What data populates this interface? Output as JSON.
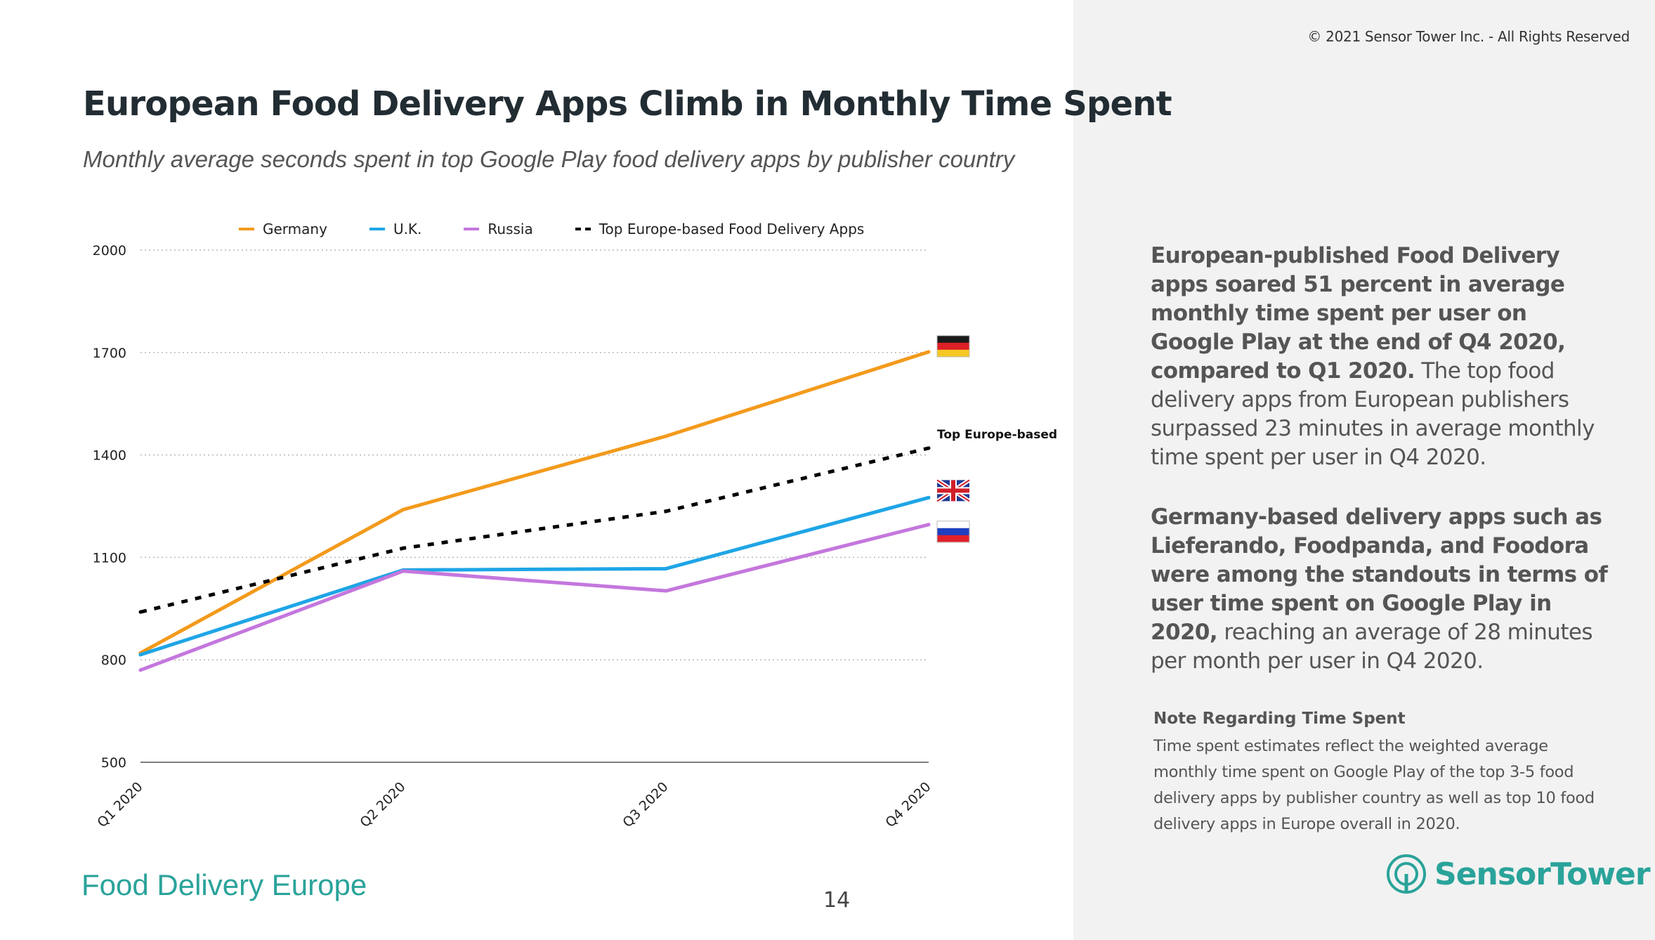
{
  "header": {
    "copyright": "© 2021 Sensor Tower Inc. - All Rights Reserved",
    "title": "European Food Delivery Apps Climb in Monthly Time Spent",
    "subtitle": "Monthly average seconds spent in top Google Play food delivery apps by publisher country"
  },
  "chart_data": {
    "type": "line",
    "categories": [
      "Q1 2020",
      "Q2 2020",
      "Q3 2020",
      "Q4 2020"
    ],
    "ylim": [
      500,
      2000
    ],
    "yticks": [
      500,
      800,
      1100,
      1400,
      1700,
      2000
    ],
    "grid": "horizontal dotted",
    "legend_position": "top",
    "series": [
      {
        "name": "Germany",
        "color": "#f39a1c",
        "dashed": false,
        "values": [
          820,
          1240,
          1455,
          1702
        ]
      },
      {
        "name": "U.K.",
        "color": "#1ea5e6",
        "dashed": false,
        "values": [
          815,
          1063,
          1067,
          1275
        ]
      },
      {
        "name": "Russia",
        "color": "#c477dd",
        "dashed": false,
        "values": [
          770,
          1060,
          1002,
          1196
        ]
      },
      {
        "name": "Top Europe-based Food Delivery Apps",
        "color": "#000000",
        "dashed": true,
        "values": [
          940,
          1127,
          1235,
          1420
        ]
      }
    ],
    "annotations": [
      {
        "text": "Top Europe-based",
        "series": "Top Europe-based Food Delivery Apps"
      }
    ],
    "flag_icons": [
      "germany-flag-icon",
      "uk-flag-icon",
      "russia-flag-icon"
    ]
  },
  "panel": {
    "p1_bold": "European-published Food Delivery apps soared 51 percent in average monthly time spent per user on Google Play at the end of Q4 2020, compared to Q1 2020.",
    "p1_rest": " The top food delivery apps from European publishers surpassed 23 minutes in average monthly time spent per user in Q4 2020.",
    "p2_bold": "Germany-based delivery apps such as Lieferando, Foodpanda, and Foodora were among the standouts in terms of user time spent on Google Play in 2020,",
    "p2_rest": " reaching an average of 28 minutes per month per user in Q4 2020.",
    "note_title": "Note Regarding Time Spent",
    "note_text": "Time spent estimates reflect the weighted average monthly time spent on Google Play of the top 3-5 food delivery apps by publisher country as well as top 10 food delivery apps in Europe overall in 2020.",
    "logo_text": "SensorTower"
  },
  "footer": {
    "section": "Food Delivery Europe",
    "page_number": "14"
  },
  "colors": {
    "accent": "#2aa39a",
    "panel_bg": "#f2f2f2"
  }
}
